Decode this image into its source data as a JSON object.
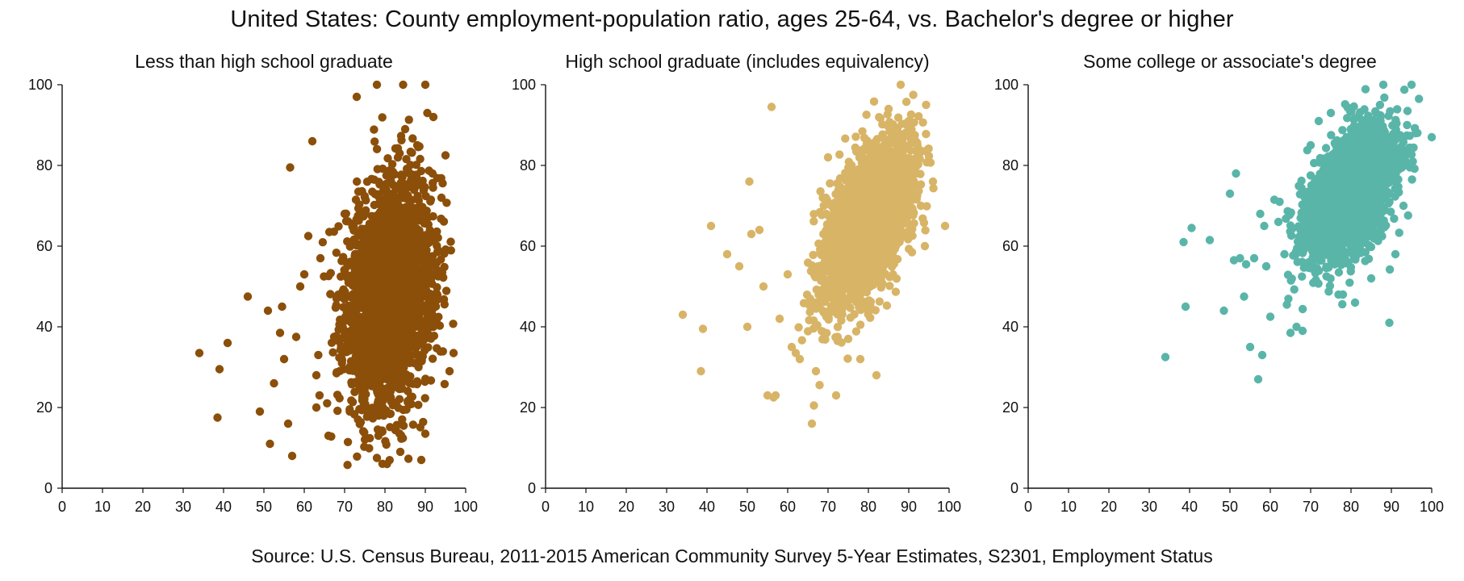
{
  "title": "United States: County employment-population ratio, ages 25-64, vs. Bachelor's degree or higher",
  "source": "Source: U.S. Census Bureau, 2011-2015 American Community Survey 5-Year Estimates, S2301, Employment Status",
  "chart_data": [
    {
      "type": "scatter",
      "title": "Less than high school graduate",
      "xlabel": "",
      "ylabel": "",
      "xlim": [
        0,
        100
      ],
      "ylim": [
        0,
        100
      ],
      "x_ticks": [
        "0",
        "10",
        "20",
        "30",
        "40",
        "50",
        "60",
        "70",
        "80",
        "90",
        "100"
      ],
      "y_ticks": [
        "0",
        "20",
        "40",
        "60",
        "80",
        "100"
      ],
      "grid": false,
      "color": "#8B4F0A",
      "distribution": {
        "x_mean": 81,
        "x_sd": 5.5,
        "y_mean": 48,
        "y_sd": 14,
        "corr": 0.2,
        "count": 2400
      },
      "points": [
        [
          34,
          33.5
        ],
        [
          38.5,
          17.5
        ],
        [
          39,
          29.5
        ],
        [
          41,
          36
        ],
        [
          46,
          47.5
        ],
        [
          49,
          19
        ],
        [
          51,
          44
        ],
        [
          51.5,
          11
        ],
        [
          52.5,
          26
        ],
        [
          54,
          38.5
        ],
        [
          54.5,
          45
        ],
        [
          55,
          32
        ],
        [
          56,
          16
        ],
        [
          56.5,
          79.5
        ],
        [
          57,
          8
        ],
        [
          58,
          37.5
        ],
        [
          59,
          50
        ],
        [
          60,
          53
        ],
        [
          61,
          62.5
        ],
        [
          62,
          86
        ],
        [
          63,
          28
        ],
        [
          64,
          57
        ],
        [
          73,
          97
        ],
        [
          78,
          100
        ],
        [
          84.5,
          100
        ],
        [
          90,
          100
        ],
        [
          85,
          89
        ],
        [
          88,
          85
        ],
        [
          90.5,
          93
        ],
        [
          92,
          92
        ],
        [
          95,
          82.5
        ],
        [
          97,
          33.5
        ],
        [
          96,
          29
        ],
        [
          90,
          13.5
        ],
        [
          89,
          7
        ],
        [
          80.5,
          6
        ],
        [
          78,
          7.5
        ],
        [
          66,
          13
        ],
        [
          63,
          20
        ],
        [
          94,
          72
        ],
        [
          93,
          54
        ],
        [
          92,
          40
        ],
        [
          70,
          68
        ],
        [
          68,
          47
        ],
        [
          87,
          76
        ]
      ]
    },
    {
      "type": "scatter",
      "title": "High school graduate (includes equivalency)",
      "xlabel": "",
      "ylabel": "",
      "xlim": [
        0,
        100
      ],
      "ylim": [
        0,
        100
      ],
      "x_ticks": [
        "0",
        "10",
        "20",
        "30",
        "40",
        "50",
        "60",
        "70",
        "80",
        "90",
        "100"
      ],
      "y_ticks": [
        "0",
        "20",
        "40",
        "60",
        "80",
        "100"
      ],
      "grid": false,
      "color": "#D8B467",
      "distribution": {
        "x_mean": 80,
        "x_sd": 5.5,
        "y_mean": 66,
        "y_sd": 10,
        "corr": 0.55,
        "count": 2400
      },
      "points": [
        [
          34,
          43
        ],
        [
          38.5,
          29
        ],
        [
          39,
          39.5
        ],
        [
          41,
          65
        ],
        [
          45,
          58
        ],
        [
          48,
          55
        ],
        [
          50,
          40
        ],
        [
          50.5,
          76
        ],
        [
          51,
          63
        ],
        [
          53,
          64
        ],
        [
          54,
          50
        ],
        [
          55,
          23
        ],
        [
          56,
          94.5
        ],
        [
          56.5,
          22.5
        ],
        [
          57,
          23
        ],
        [
          58,
          42
        ],
        [
          60,
          53
        ],
        [
          61,
          35
        ],
        [
          62,
          33.5
        ],
        [
          63,
          32
        ],
        [
          66,
          16
        ],
        [
          66.5,
          20.5
        ],
        [
          67,
          29
        ],
        [
          72,
          23
        ],
        [
          75,
          37
        ],
        [
          78,
          32
        ],
        [
          82,
          28
        ],
        [
          88,
          100
        ],
        [
          85,
          94
        ],
        [
          90,
          91
        ],
        [
          96,
          76
        ],
        [
          99,
          65
        ],
        [
          94,
          60
        ],
        [
          93,
          70
        ],
        [
          70,
          82
        ]
      ]
    },
    {
      "type": "scatter",
      "title": "Some college or associate's degree",
      "xlabel": "",
      "ylabel": "",
      "xlim": [
        0,
        100
      ],
      "ylim": [
        0,
        100
      ],
      "x_ticks": [
        "0",
        "10",
        "20",
        "30",
        "40",
        "50",
        "60",
        "70",
        "80",
        "90",
        "100"
      ],
      "y_ticks": [
        "0",
        "20",
        "40",
        "60",
        "80",
        "100"
      ],
      "grid": false,
      "color": "#5AB5A9",
      "distribution": {
        "x_mean": 80,
        "x_sd": 5.5,
        "y_mean": 73,
        "y_sd": 8,
        "corr": 0.5,
        "count": 2400
      },
      "points": [
        [
          34,
          32.5
        ],
        [
          38.5,
          61
        ],
        [
          39,
          45
        ],
        [
          40.5,
          64.5
        ],
        [
          45,
          61.5
        ],
        [
          48.5,
          44
        ],
        [
          50,
          73
        ],
        [
          51,
          56.5
        ],
        [
          51.5,
          78
        ],
        [
          52.5,
          57
        ],
        [
          53.5,
          47.5
        ],
        [
          54,
          55.5
        ],
        [
          55,
          35
        ],
        [
          56,
          57
        ],
        [
          57,
          27
        ],
        [
          58,
          33
        ],
        [
          57.5,
          68
        ],
        [
          58.5,
          65
        ],
        [
          59,
          55
        ],
        [
          60,
          42.5
        ],
        [
          61,
          71.5
        ],
        [
          62,
          66
        ],
        [
          63.5,
          58
        ],
        [
          65,
          38.5
        ],
        [
          66.5,
          40
        ],
        [
          68,
          39
        ],
        [
          70,
          85
        ],
        [
          72,
          91
        ],
        [
          75,
          93
        ],
        [
          88,
          100
        ],
        [
          95,
          100
        ],
        [
          94,
          93.5
        ],
        [
          96,
          88
        ],
        [
          100,
          87
        ],
        [
          89.5,
          41
        ],
        [
          93,
          70
        ],
        [
          81,
          46
        ],
        [
          78,
          48
        ],
        [
          85,
          52
        ],
        [
          91,
          58
        ]
      ]
    }
  ]
}
